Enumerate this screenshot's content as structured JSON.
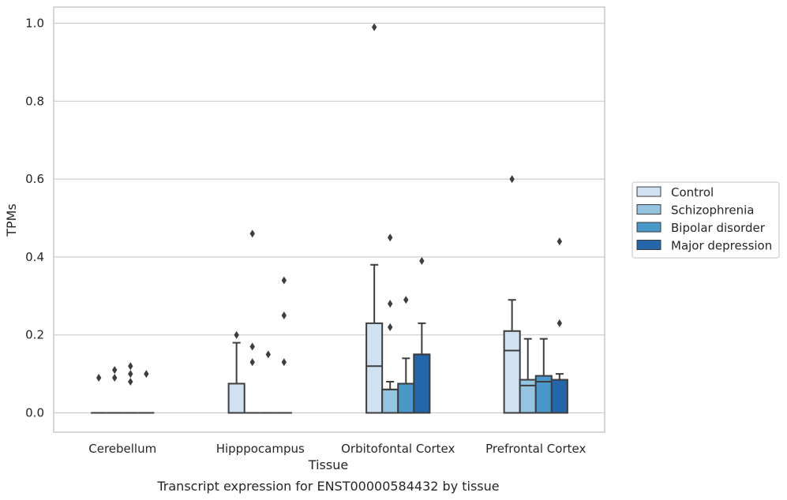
{
  "caption": "Transcript expression for ENST00000584432 by tissue",
  "chart_data": {
    "type": "boxplot",
    "xlabel": "Tissue",
    "ylabel": "TPMs",
    "ylim": [
      -0.05,
      1.04
    ],
    "yticks": [
      0.0,
      0.2,
      0.4,
      0.6,
      0.8,
      1.0
    ],
    "ytick_labels": [
      "0.0",
      "0.2",
      "0.4",
      "0.6",
      "0.8",
      "1.0"
    ],
    "grid": "horizontal",
    "legend_position": "right",
    "categories": [
      "Cerebellum",
      "Hipppocampus",
      "Orbitofontal Cortex",
      "Prefrontal Cortex"
    ],
    "series": [
      {
        "name": "Control",
        "color": "#d0e1f2",
        "boxes": [
          {
            "q1": 0,
            "median": 0,
            "q3": 0,
            "whislo": 0,
            "whishi": 0,
            "fliers": [
              0.09
            ]
          },
          {
            "q1": 0,
            "median": 0,
            "q3": 0.075,
            "whislo": 0,
            "whishi": 0.18,
            "fliers": [
              0.2
            ]
          },
          {
            "q1": 0,
            "median": 0.12,
            "q3": 0.23,
            "whislo": 0,
            "whishi": 0.38,
            "fliers": [
              0.99
            ]
          },
          {
            "q1": 0,
            "median": 0.16,
            "q3": 0.21,
            "whislo": 0,
            "whishi": 0.29,
            "fliers": [
              0.6
            ]
          }
        ]
      },
      {
        "name": "Schizophrenia",
        "color": "#94c4df",
        "boxes": [
          {
            "q1": 0,
            "median": 0,
            "q3": 0,
            "whislo": 0,
            "whishi": 0,
            "fliers": [
              0.09,
              0.11
            ]
          },
          {
            "q1": 0,
            "median": 0,
            "q3": 0,
            "whislo": 0,
            "whishi": 0,
            "fliers": [
              0.13,
              0.17,
              0.46
            ]
          },
          {
            "q1": 0,
            "median": 0.06,
            "q3": 0.06,
            "whislo": 0,
            "whishi": 0.08,
            "fliers": [
              0.22,
              0.28,
              0.45
            ]
          },
          {
            "q1": 0,
            "median": 0.07,
            "q3": 0.085,
            "whislo": 0,
            "whishi": 0.19,
            "fliers": []
          }
        ]
      },
      {
        "name": "Bipolar disorder",
        "color": "#4a98c9",
        "boxes": [
          {
            "q1": 0,
            "median": 0,
            "q3": 0,
            "whislo": 0,
            "whishi": 0,
            "fliers": [
              0.08,
              0.1,
              0.12
            ]
          },
          {
            "q1": 0,
            "median": 0,
            "q3": 0,
            "whislo": 0,
            "whishi": 0,
            "fliers": [
              0.15
            ]
          },
          {
            "q1": 0,
            "median": 0.075,
            "q3": 0.075,
            "whislo": 0,
            "whishi": 0.14,
            "fliers": [
              0.29
            ]
          },
          {
            "q1": 0,
            "median": 0.08,
            "q3": 0.095,
            "whislo": 0,
            "whishi": 0.19,
            "fliers": []
          }
        ]
      },
      {
        "name": "Major depression",
        "color": "#2366aa",
        "boxes": [
          {
            "q1": 0,
            "median": 0,
            "q3": 0,
            "whislo": 0,
            "whishi": 0,
            "fliers": [
              0.1
            ]
          },
          {
            "q1": 0,
            "median": 0,
            "q3": 0,
            "whislo": 0,
            "whishi": 0,
            "fliers": [
              0.13,
              0.25,
              0.34
            ]
          },
          {
            "q1": 0,
            "median": 0.15,
            "q3": 0.15,
            "whislo": 0,
            "whishi": 0.23,
            "fliers": [
              0.39
            ]
          },
          {
            "q1": 0,
            "median": 0.085,
            "q3": 0.085,
            "whislo": 0,
            "whishi": 0.1,
            "fliers": [
              0.23,
              0.44
            ]
          }
        ]
      }
    ]
  }
}
